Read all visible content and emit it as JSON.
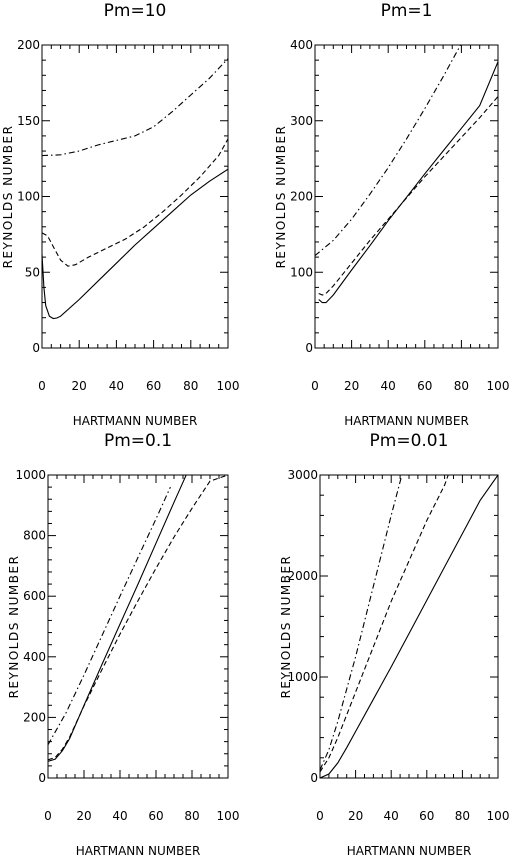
{
  "chart_data": [
    {
      "type": "line",
      "title": "Pm=10",
      "xlabel": "HARTMANN NUMBER",
      "ylabel": "REYNOLDS NUMBER",
      "xlim": [
        0,
        100
      ],
      "ylim": [
        0,
        200
      ],
      "x_ticks": [
        0,
        20,
        40,
        60,
        80,
        100
      ],
      "y_ticks": [
        0,
        50,
        100,
        150,
        200
      ],
      "x_tick_labels": [
        "0",
        "20",
        "40",
        "60",
        "80",
        "100"
      ],
      "y_tick_labels": [
        "0",
        "50",
        "100",
        "150",
        "200"
      ],
      "series": [
        {
          "style": "solid",
          "points": [
            [
              0,
              62
            ],
            [
              1,
              40
            ],
            [
              2,
              28
            ],
            [
              4,
              21
            ],
            [
              6,
              19.5
            ],
            [
              8,
              19.8
            ],
            [
              10,
              21
            ],
            [
              20,
              32
            ],
            [
              30,
              44
            ],
            [
              40,
              56
            ],
            [
              50,
              68
            ],
            [
              60,
              79
            ],
            [
              70,
              90
            ],
            [
              80,
              101
            ],
            [
              90,
              110
            ],
            [
              100,
              118
            ]
          ]
        },
        {
          "style": "dashed",
          "points": [
            [
              0,
              76
            ],
            [
              3,
              74
            ],
            [
              6,
              67
            ],
            [
              10,
              58
            ],
            [
              14,
              54
            ],
            [
              18,
              55
            ],
            [
              25,
              60
            ],
            [
              35,
              66
            ],
            [
              45,
              72
            ],
            [
              55,
              80
            ],
            [
              65,
              90
            ],
            [
              75,
              101
            ],
            [
              85,
              113
            ],
            [
              95,
              127
            ],
            [
              100,
              138
            ]
          ]
        },
        {
          "style": "dashdot",
          "points": [
            [
              0,
              127
            ],
            [
              10,
              127.5
            ],
            [
              20,
              130
            ],
            [
              30,
              134
            ],
            [
              40,
              137
            ],
            [
              50,
              140
            ],
            [
              60,
              146
            ],
            [
              70,
              156
            ],
            [
              80,
              167
            ],
            [
              90,
              178
            ],
            [
              100,
              191
            ]
          ]
        }
      ]
    },
    {
      "type": "line",
      "title": "Pm=1",
      "xlabel": "HARTMANN NUMBER",
      "ylabel": "REYNOLDS NUMBER",
      "xlim": [
        0,
        100
      ],
      "ylim": [
        0,
        400
      ],
      "x_ticks": [
        0,
        20,
        40,
        60,
        80,
        100
      ],
      "y_ticks": [
        0,
        100,
        200,
        300,
        400
      ],
      "x_tick_labels": [
        "0",
        "20",
        "40",
        "60",
        "80",
        "100"
      ],
      "y_tick_labels": [
        "0",
        "100",
        "200",
        "300",
        "400"
      ],
      "series": [
        {
          "style": "solid",
          "points": [
            [
              2,
              64
            ],
            [
              4,
              60
            ],
            [
              6,
              60
            ],
            [
              10,
              70
            ],
            [
              20,
              103
            ],
            [
              30,
              135
            ],
            [
              40,
              168
            ],
            [
              50,
              199
            ],
            [
              60,
              230
            ],
            [
              70,
              260
            ],
            [
              80,
              290
            ],
            [
              90,
              320
            ],
            [
              100,
              378
            ]
          ]
        },
        {
          "style": "dashed",
          "points": [
            [
              2,
              72
            ],
            [
              4,
              70
            ],
            [
              6,
              72
            ],
            [
              10,
              82
            ],
            [
              20,
              112
            ],
            [
              30,
              142
            ],
            [
              40,
              170
            ],
            [
              50,
              198
            ],
            [
              60,
              226
            ],
            [
              70,
              252
            ],
            [
              80,
              278
            ],
            [
              90,
              304
            ],
            [
              100,
              332
            ]
          ]
        },
        {
          "style": "dashdot",
          "points": [
            [
              0,
              122
            ],
            [
              10,
              142
            ],
            [
              20,
              170
            ],
            [
              30,
              203
            ],
            [
              40,
              238
            ],
            [
              50,
              276
            ],
            [
              60,
              316
            ],
            [
              70,
              358
            ],
            [
              80,
              402
            ]
          ]
        }
      ]
    },
    {
      "type": "line",
      "title": "Pm=0.1",
      "xlabel": "HARTMANN NUMBER",
      "ylabel": "REYNOLDS NUMBER",
      "xlim": [
        0,
        100
      ],
      "ylim": [
        0,
        1000
      ],
      "x_ticks": [
        0,
        20,
        40,
        60,
        80,
        100
      ],
      "y_ticks": [
        0,
        200,
        400,
        600,
        800,
        1000
      ],
      "x_tick_labels": [
        "0",
        "20",
        "40",
        "60",
        "80",
        "100"
      ],
      "y_tick_labels": [
        "0",
        "200",
        "400",
        "600",
        "800",
        "1000"
      ],
      "series": [
        {
          "style": "solid",
          "points": [
            [
              0,
              55
            ],
            [
              4,
              62
            ],
            [
              8,
              90
            ],
            [
              12,
              130
            ],
            [
              20,
              240
            ],
            [
              30,
              375
            ],
            [
              40,
              508
            ],
            [
              50,
              640
            ],
            [
              60,
              775
            ],
            [
              70,
              910
            ],
            [
              77,
              1003
            ]
          ]
        },
        {
          "style": "dashed",
          "points": [
            [
              0,
              60
            ],
            [
              4,
              68
            ],
            [
              8,
              95
            ],
            [
              12,
              135
            ],
            [
              20,
              238
            ],
            [
              30,
              358
            ],
            [
              40,
              475
            ],
            [
              50,
              585
            ],
            [
              60,
              692
            ],
            [
              70,
              795
            ],
            [
              80,
              890
            ],
            [
              90,
              980
            ],
            [
              100,
              1000
            ]
          ]
        },
        {
          "style": "dashdot",
          "points": [
            [
              0,
              110
            ],
            [
              10,
              215
            ],
            [
              20,
              340
            ],
            [
              30,
              470
            ],
            [
              40,
              600
            ],
            [
              50,
              728
            ],
            [
              60,
              855
            ],
            [
              68,
              960
            ]
          ]
        }
      ]
    },
    {
      "type": "line",
      "title": "Pm=0.01",
      "xlabel": "HARTMANN NUMBER",
      "ylabel": "REYNOLDS NUMBER",
      "xlim": [
        0,
        100
      ],
      "ylim": [
        0,
        3000
      ],
      "x_ticks": [
        0,
        20,
        40,
        60,
        80,
        100
      ],
      "y_ticks": [
        0,
        1000,
        2000,
        3000
      ],
      "x_tick_labels": [
        "0",
        "20",
        "40",
        "60",
        "80",
        "100"
      ],
      "y_tick_labels": [
        "0",
        "1000",
        "2000",
        "3000"
      ],
      "series": [
        {
          "style": "solid",
          "points": [
            [
              0,
              0
            ],
            [
              5,
              40
            ],
            [
              10,
              150
            ],
            [
              15,
              300
            ],
            [
              20,
              460
            ],
            [
              30,
              780
            ],
            [
              40,
              1100
            ],
            [
              50,
              1430
            ],
            [
              60,
              1760
            ],
            [
              70,
              2090
            ],
            [
              80,
              2420
            ],
            [
              90,
              2750
            ],
            [
              100,
              3000
            ]
          ]
        },
        {
          "style": "dashed",
          "points": [
            [
              0,
              60
            ],
            [
              5,
              200
            ],
            [
              10,
              400
            ],
            [
              20,
              850
            ],
            [
              30,
              1300
            ],
            [
              40,
              1750
            ],
            [
              50,
              2150
            ],
            [
              60,
              2550
            ],
            [
              70,
              2900
            ],
            [
              72,
              3000
            ]
          ]
        },
        {
          "style": "dashdot",
          "points": [
            [
              0,
              80
            ],
            [
              5,
              280
            ],
            [
              10,
              560
            ],
            [
              20,
              1200
            ],
            [
              30,
              1900
            ],
            [
              40,
              2600
            ],
            [
              46,
              3000
            ]
          ]
        }
      ]
    }
  ]
}
